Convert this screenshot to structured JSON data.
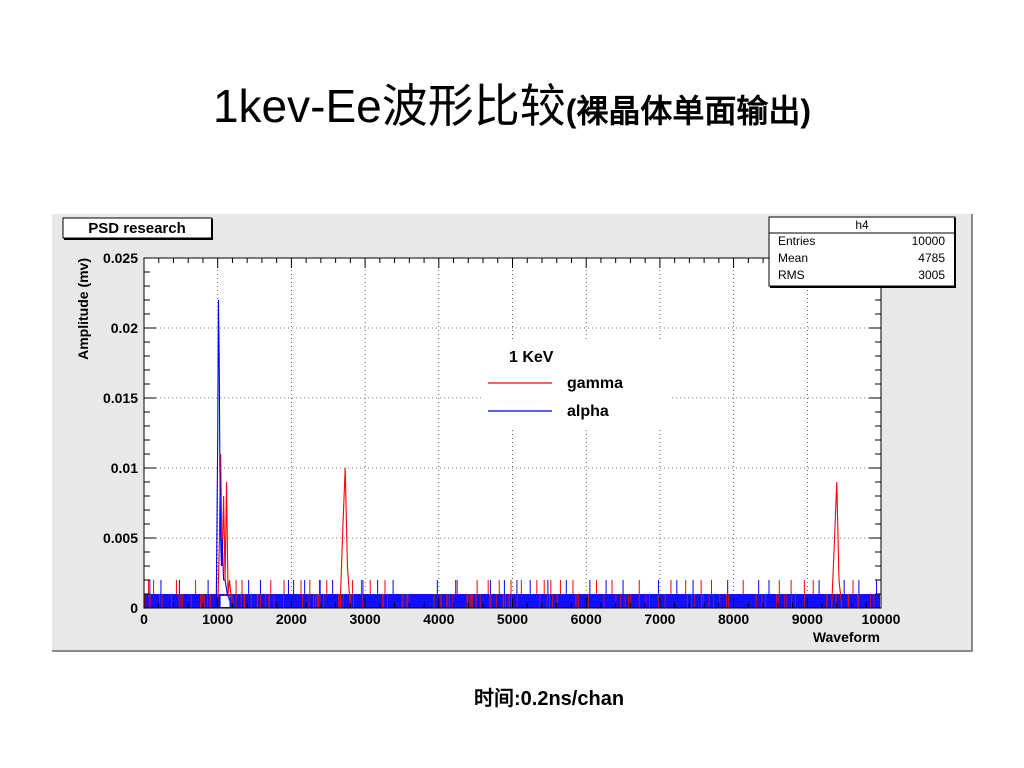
{
  "slide": {
    "title_main": "1kev-Ee波形比较",
    "title_suffix": "(裸晶体单面输出)",
    "footer": "时间:0.2ns/chan"
  },
  "chart_data": {
    "type": "line",
    "title": "PSD research",
    "xlabel": "Waveform",
    "ylabel": "Amplitude (mv)",
    "xlim": [
      0,
      10000
    ],
    "ylim": [
      0,
      0.025
    ],
    "xticks": [
      0,
      1000,
      2000,
      3000,
      4000,
      5000,
      6000,
      7000,
      8000,
      9000,
      10000
    ],
    "yticks": [
      0,
      0.005,
      0.01,
      0.015,
      0.02,
      0.025
    ],
    "ytick_labels": [
      "0",
      "0.005",
      "0.01",
      "0.015",
      "0.02",
      "0.025"
    ],
    "grid": true,
    "legend_title": "1 KeV",
    "legend_position": "upper-center",
    "stats": {
      "name": "h4",
      "rows": [
        {
          "label": "Entries",
          "value": "10000"
        },
        {
          "label": "Mean",
          "value": "4785"
        },
        {
          "label": "RMS",
          "value": "3005"
        }
      ]
    },
    "noise_band_max": 0.001,
    "series": [
      {
        "name": "gamma",
        "color": "#ff0000",
        "x": [
          0,
          1000,
          1020,
          1040,
          1060,
          1080,
          1100,
          1120,
          1140,
          1160,
          1200,
          2660,
          2700,
          2730,
          2760,
          2800,
          9330,
          9370,
          9400,
          9430,
          9470,
          10000
        ],
        "y": [
          0,
          0,
          0.004,
          0.011,
          0.003,
          0.008,
          0.002,
          0.009,
          0.001,
          0.002,
          0,
          0,
          0.006,
          0.01,
          0.003,
          0,
          0,
          0.005,
          0.009,
          0.002,
          0,
          0
        ]
      },
      {
        "name": "alpha",
        "color": "#0000ff",
        "x": [
          0,
          980,
          1000,
          1010,
          1020,
          1030,
          1040,
          1050,
          1060,
          1080,
          1100,
          1130,
          1200,
          10000
        ],
        "y": [
          0,
          0,
          0.012,
          0.022,
          0.018,
          0.01,
          0.005,
          0.003,
          0.005,
          0.002,
          0.002,
          0.001,
          0,
          0
        ]
      }
    ],
    "gamma_spikes_x": [
      60,
      130,
      440,
      700,
      1250,
      1330,
      1720,
      1900,
      2130,
      2250,
      2380,
      2480,
      2830,
      2950,
      3070,
      3270,
      4250,
      4520,
      4670,
      4820,
      4980,
      5120,
      5330,
      5430,
      5520,
      5650,
      5820,
      6140,
      6350,
      6720,
      7150,
      7350,
      7560,
      7700,
      8130,
      8620,
      8780,
      8960,
      9080,
      9620
    ],
    "alpha_spikes_x": [
      80,
      230,
      480,
      870,
      1420,
      1580,
      1960,
      2030,
      2180,
      2390,
      2560,
      2970,
      3170,
      3380,
      3980,
      4230,
      4700,
      4890,
      5060,
      5240,
      5480,
      5730,
      6050,
      6270,
      6500,
      6980,
      7230,
      7450,
      7920,
      8340,
      8480,
      9160,
      9500,
      9700,
      9940
    ]
  }
}
